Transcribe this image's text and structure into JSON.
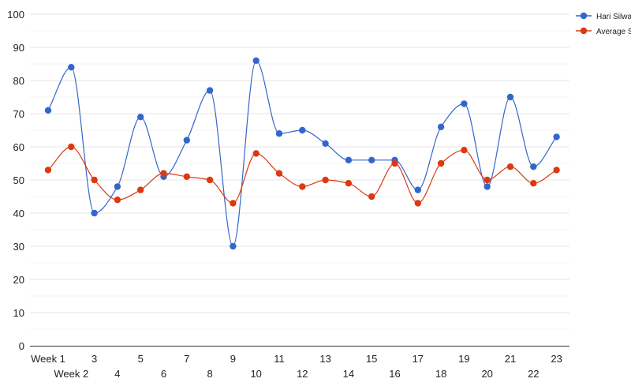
{
  "chart_data": {
    "type": "line",
    "smooth": true,
    "title": "",
    "xlabel": "",
    "ylabel": "",
    "ylim": [
      0,
      100
    ],
    "yticks": [
      0,
      10,
      20,
      30,
      40,
      50,
      60,
      70,
      80,
      90,
      100
    ],
    "grid": true,
    "legend_position": "right",
    "categories": [
      "Week 1",
      "Week 2",
      "3",
      "4",
      "5",
      "6",
      "7",
      "8",
      "9",
      "10",
      "11",
      "12",
      "13",
      "14",
      "15",
      "16",
      "17",
      "18",
      "19",
      "20",
      "21",
      "22",
      "23"
    ],
    "series": [
      {
        "name": "Hari Silwa",
        "color": "#3366cc",
        "values": [
          71,
          84,
          40,
          48,
          69,
          51,
          62,
          77,
          30,
          86,
          64,
          65,
          61,
          56,
          56,
          56,
          47,
          66,
          73,
          48,
          75,
          54,
          63
        ]
      },
      {
        "name": "Average S",
        "color": "#dc3912",
        "values": [
          53,
          60,
          50,
          44,
          47,
          52,
          51,
          50,
          43,
          58,
          52,
          48,
          50,
          49,
          45,
          55,
          43,
          55,
          59,
          50,
          54,
          49,
          53
        ]
      }
    ],
    "gridline_color": "#e6e6e6",
    "axis_color": "#333333"
  }
}
